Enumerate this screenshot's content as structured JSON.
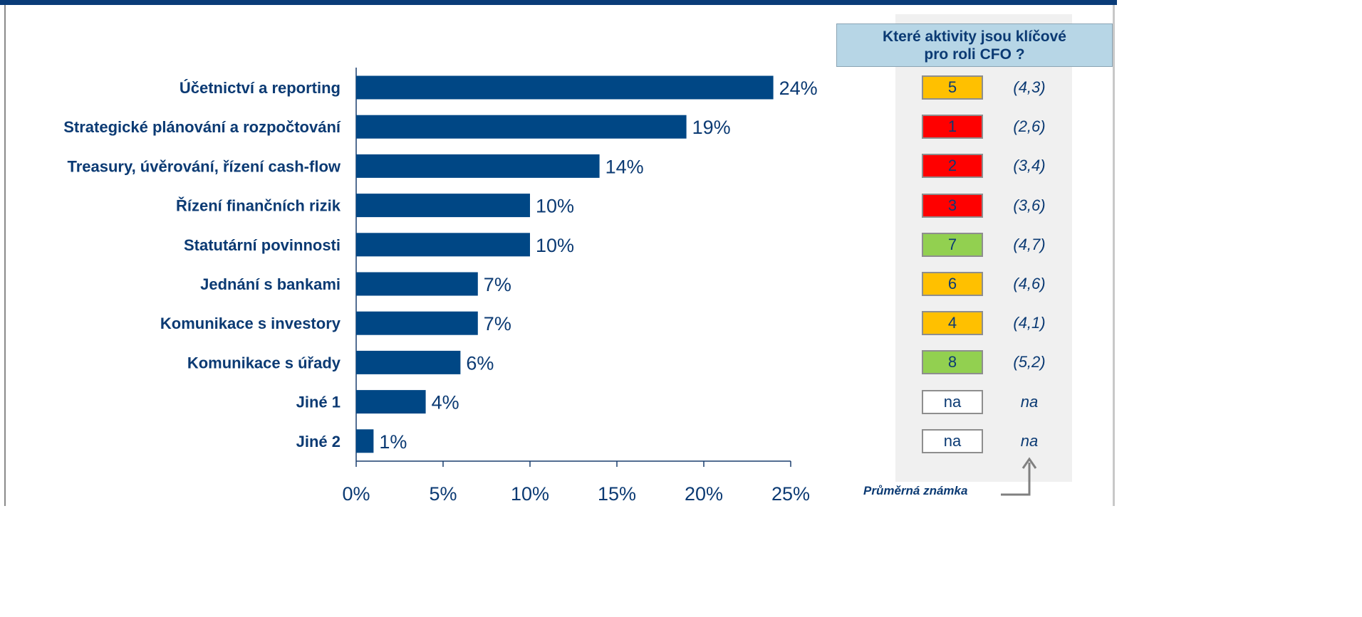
{
  "chart_data": {
    "type": "bar",
    "orientation": "horizontal",
    "categories": [
      "Účetnictví a reporting",
      "Strategické plánování a rozpočtování",
      "Treasury, úvěrování, řízení cash-flow",
      "Řízení finančních rizik",
      "Statutární povinnosti",
      "Jednání s bankami",
      "Komunikace s investory",
      "Komunikace s úřady",
      "Jiné 1",
      "Jiné 2"
    ],
    "values": [
      24,
      19,
      14,
      10,
      10,
      7,
      7,
      6,
      4,
      1
    ],
    "value_labels": [
      "24%",
      "19%",
      "14%",
      "10%",
      "10%",
      "7%",
      "7%",
      "6%",
      "4%",
      "1%"
    ],
    "xlim": [
      0,
      25
    ],
    "x_ticks": [
      0,
      5,
      10,
      15,
      20,
      25
    ],
    "x_tick_labels": [
      "0%",
      "5%",
      "10%",
      "15%",
      "20%",
      "25%"
    ],
    "bar_color": "#004785",
    "grid": false
  },
  "side_panel": {
    "header": "Které aktivity jsou klíčové\npro roli CFO ?",
    "rows": [
      {
        "rank": "5",
        "grade": "(4,3)",
        "color": "#ffc000"
      },
      {
        "rank": "1",
        "grade": "(2,6)",
        "color": "#ff0000"
      },
      {
        "rank": "2",
        "grade": "(3,4)",
        "color": "#ff0000"
      },
      {
        "rank": "3",
        "grade": "(3,6)",
        "color": "#ff0000"
      },
      {
        "rank": "7",
        "grade": "(4,7)",
        "color": "#92d050"
      },
      {
        "rank": "6",
        "grade": "(4,6)",
        "color": "#ffc000"
      },
      {
        "rank": "4",
        "grade": "(4,1)",
        "color": "#ffc000"
      },
      {
        "rank": "8",
        "grade": "(5,2)",
        "color": "#92d050"
      },
      {
        "rank": "na",
        "grade": "na",
        "color": "#ffffff"
      },
      {
        "rank": "na",
        "grade": "na",
        "color": "#ffffff"
      }
    ],
    "footnote": "Průměrná známka"
  }
}
